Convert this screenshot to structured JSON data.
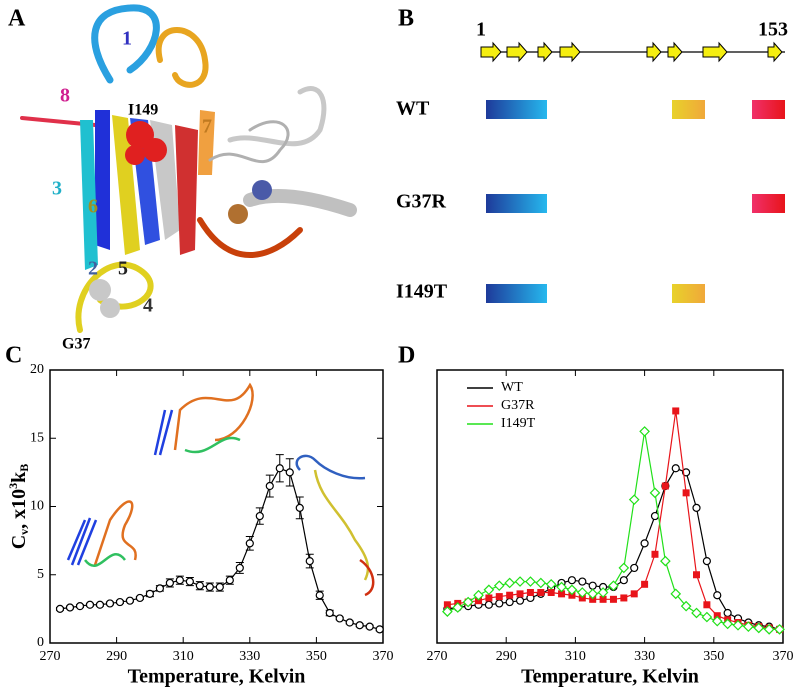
{
  "panel_labels": [
    "A",
    "B",
    "C",
    "D"
  ],
  "panel_a": {
    "labels": [
      "1",
      "8",
      "I149",
      "7",
      "3",
      "6",
      "2",
      "5",
      "4",
      "G37"
    ]
  },
  "panel_b": {
    "start": "1",
    "end": "153",
    "rows": [
      "WT",
      "G37R",
      "I149T"
    ]
  },
  "chart_data": [
    {
      "type": "line",
      "x_label": "Temperature, Kelvin",
      "y_label": [
        "C",
        "v",
        ", x10",
        "3",
        "k",
        "B"
      ],
      "x": [
        273,
        276,
        279,
        282,
        285,
        288,
        291,
        294,
        297,
        300,
        303,
        306,
        309,
        312,
        315,
        318,
        321,
        324,
        327,
        330,
        333,
        336,
        339,
        342,
        345,
        348,
        351,
        354,
        357,
        360,
        363,
        366,
        369
      ],
      "values": [
        2.5,
        2.6,
        2.7,
        2.8,
        2.8,
        2.9,
        3.0,
        3.1,
        3.3,
        3.6,
        4.0,
        4.4,
        4.6,
        4.5,
        4.2,
        4.1,
        4.1,
        4.6,
        5.5,
        7.3,
        9.3,
        11.5,
        12.8,
        12.5,
        9.9,
        6.0,
        3.5,
        2.2,
        1.8,
        1.5,
        1.3,
        1.2,
        1.0
      ],
      "errors": [
        0.1,
        0.1,
        0.1,
        0.1,
        0.1,
        0.1,
        0.1,
        0.1,
        0.1,
        0.2,
        0.2,
        0.3,
        0.3,
        0.3,
        0.3,
        0.3,
        0.3,
        0.3,
        0.4,
        0.5,
        0.6,
        0.8,
        1.0,
        1.0,
        0.8,
        0.5,
        0.3,
        0.2,
        0.1,
        0.1,
        0.1,
        0.1,
        0.1
      ],
      "color": "#000000",
      "marker": "circle-open",
      "xlim": [
        270,
        370
      ],
      "ylim": [
        0,
        20
      ],
      "xticks": [
        270,
        290,
        310,
        330,
        350,
        370
      ],
      "yticks": [
        0,
        5,
        10,
        15,
        20
      ]
    },
    {
      "type": "line",
      "x_label": "Temperature, Kelvin",
      "legend": "upper-left",
      "x": [
        273,
        276,
        279,
        282,
        285,
        288,
        291,
        294,
        297,
        300,
        303,
        306,
        309,
        312,
        315,
        318,
        321,
        324,
        327,
        330,
        333,
        336,
        339,
        342,
        345,
        348,
        351,
        354,
        357,
        360,
        363,
        366,
        369
      ],
      "series": [
        {
          "name": "WT",
          "color": "#000000",
          "marker": "circle-open",
          "values": [
            2.5,
            2.6,
            2.7,
            2.8,
            2.8,
            2.9,
            3.0,
            3.1,
            3.3,
            3.6,
            4.0,
            4.4,
            4.6,
            4.5,
            4.2,
            4.1,
            4.1,
            4.6,
            5.5,
            7.3,
            9.3,
            11.5,
            12.8,
            12.5,
            9.9,
            6.0,
            3.5,
            2.2,
            1.8,
            1.5,
            1.3,
            1.2,
            1.0
          ]
        },
        {
          "name": "G37R",
          "color": "#e8141a",
          "marker": "square",
          "values": [
            2.8,
            2.9,
            3.0,
            3.1,
            3.3,
            3.4,
            3.5,
            3.6,
            3.7,
            3.7,
            3.7,
            3.6,
            3.5,
            3.3,
            3.2,
            3.2,
            3.2,
            3.3,
            3.6,
            4.3,
            6.5,
            11.5,
            17.0,
            11.0,
            5.0,
            2.8,
            2.0,
            1.7,
            1.5,
            1.3,
            1.2,
            1.1,
            1.0
          ]
        },
        {
          "name": "I149T",
          "color": "#22e01a",
          "marker": "diamond-open",
          "values": [
            2.3,
            2.6,
            3.0,
            3.5,
            3.9,
            4.2,
            4.4,
            4.5,
            4.5,
            4.4,
            4.3,
            4.1,
            3.9,
            3.7,
            3.6,
            3.7,
            4.2,
            5.5,
            10.5,
            15.5,
            11.0,
            6.0,
            3.6,
            2.7,
            2.2,
            1.9,
            1.6,
            1.4,
            1.3,
            1.2,
            1.1,
            1.0,
            1.0
          ]
        }
      ],
      "xlim": [
        270,
        370
      ],
      "ylim": [
        0,
        20
      ],
      "xticks": [
        270,
        290,
        310,
        330,
        350,
        370
      ]
    }
  ]
}
